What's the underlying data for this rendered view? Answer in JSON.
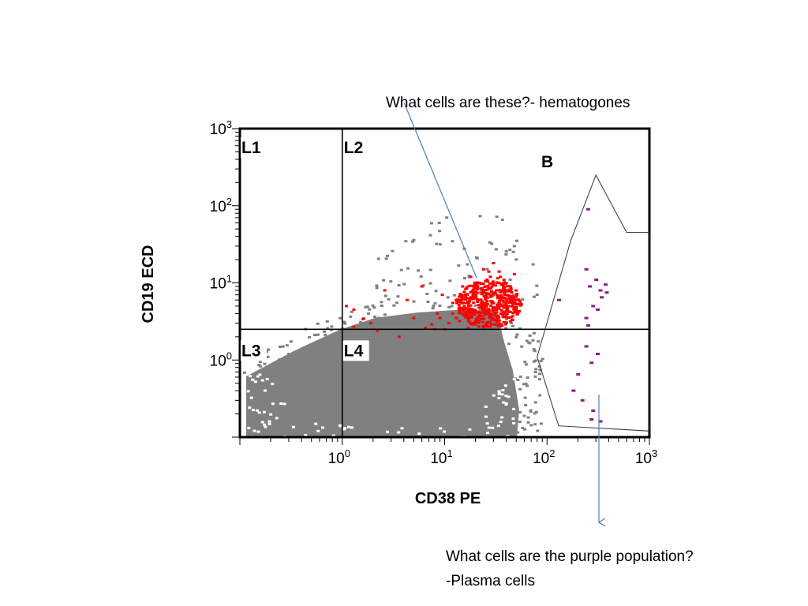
{
  "annotations": {
    "hematogones": "What cells are these?- hematogones",
    "purple_question": "What cells are the purple population?",
    "purple_answer": "-Plasma cells"
  },
  "chart_data": {
    "type": "scatter",
    "scale": "log",
    "xlabel": "CD38 PE",
    "ylabel": "CD19 ECD",
    "xlim": [
      0.1,
      1000
    ],
    "ylim": [
      0.1,
      1000
    ],
    "x_ticks": [
      {
        "value": 1,
        "base": "10",
        "exp": "0"
      },
      {
        "value": 10,
        "base": "10",
        "exp": "1"
      },
      {
        "value": 100,
        "base": "10",
        "exp": "2"
      },
      {
        "value": 1000,
        "base": "10",
        "exp": "3"
      }
    ],
    "y_ticks": [
      {
        "value": 1,
        "base": "10",
        "exp": "0"
      },
      {
        "value": 10,
        "base": "10",
        "exp": "1"
      },
      {
        "value": 100,
        "base": "10",
        "exp": "2"
      },
      {
        "value": 1000,
        "base": "10",
        "exp": "3"
      }
    ],
    "quadrant_lines": {
      "x": 1.0,
      "y": 2.5
    },
    "region_labels": [
      "L1",
      "L2",
      "L3",
      "L4",
      "B"
    ],
    "gate_B_polygon": [
      [
        300,
        250
      ],
      [
        600,
        45
      ],
      [
        1000,
        45
      ],
      [
        1000,
        0.12
      ],
      [
        130,
        0.14
      ],
      [
        80,
        1.1
      ],
      [
        170,
        35
      ]
    ],
    "colors": {
      "grey": "#808080",
      "red": "#ff0000",
      "purple": "#8b1a8b",
      "annotation_line": "#4a7ebb"
    },
    "series": [
      {
        "color": "red",
        "points": [
          [
            1.3,
            4.5
          ],
          [
            1.3,
            2.7
          ],
          [
            1.9,
            3.0
          ],
          [
            2.6,
            8.0
          ],
          [
            3.6,
            2.0
          ],
          [
            4.3,
            6.0
          ],
          [
            5.0,
            3.5
          ],
          [
            6.0,
            9.0
          ],
          [
            6.5,
            2.6
          ],
          [
            7.5,
            2.9
          ],
          [
            8.5,
            4.0
          ],
          [
            9.5,
            7.0
          ],
          [
            10,
            2.5
          ],
          [
            12,
            4.0
          ],
          [
            13,
            6.0
          ],
          [
            14,
            3.2
          ],
          [
            15,
            9.0
          ],
          [
            16,
            5.5
          ],
          [
            17,
            2.6
          ],
          [
            18,
            12
          ],
          [
            19,
            4.5
          ],
          [
            20,
            7.0
          ],
          [
            21,
            3.2
          ],
          [
            22,
            10
          ],
          [
            23,
            5.0
          ],
          [
            24,
            15
          ],
          [
            25,
            6.5
          ],
          [
            26,
            4.0
          ],
          [
            27,
            8.5
          ],
          [
            28,
            12
          ],
          [
            29,
            5.5
          ],
          [
            30,
            18
          ],
          [
            31,
            7.5
          ],
          [
            32,
            4.5
          ],
          [
            33,
            10
          ],
          [
            34,
            14
          ],
          [
            35,
            6.0
          ],
          [
            36,
            8.0
          ],
          [
            38,
            11
          ],
          [
            40,
            7.0
          ],
          [
            42,
            5.0
          ],
          [
            44,
            9.0
          ],
          [
            46,
            6.0
          ],
          [
            48,
            13
          ],
          [
            50,
            8.0
          ],
          [
            22,
            6.0
          ],
          [
            25,
            9.0
          ],
          [
            28,
            7.0
          ],
          [
            30,
            5.5
          ],
          [
            32,
            8.0
          ],
          [
            35,
            12
          ],
          [
            26,
            11
          ],
          [
            24,
            7.5
          ],
          [
            20,
            10
          ],
          [
            18,
            6.5
          ],
          [
            30,
            9.5
          ],
          [
            34,
            6.5
          ],
          [
            38,
            8.5
          ],
          [
            40,
            10
          ],
          [
            27,
            14
          ],
          [
            29,
            9.0
          ],
          [
            33,
            11.5
          ],
          [
            36,
            9.5
          ],
          [
            23,
            8.5
          ],
          [
            21,
            6.0
          ],
          [
            19,
            8.0
          ],
          [
            17,
            5.5
          ],
          [
            16,
            7.0
          ],
          [
            15,
            4.5
          ],
          [
            14,
            6.0
          ],
          [
            13,
            3.5
          ],
          [
            12,
            5.5
          ],
          [
            11,
            3.0
          ],
          [
            9,
            3.5
          ],
          [
            8,
            2.5
          ],
          [
            1.6,
            3.4
          ],
          [
            1.1,
            5.0
          ],
          [
            2.2,
            2.4
          ]
        ]
      },
      {
        "color": "purple",
        "points": [
          [
            250,
            90
          ],
          [
            240,
            15
          ],
          [
            300,
            11
          ],
          [
            380,
            7.5
          ],
          [
            330,
            8.0
          ],
          [
            370,
            9.5
          ],
          [
            340,
            6.5
          ],
          [
            260,
            9.0
          ],
          [
            130,
            6.0
          ],
          [
            280,
            5.0
          ],
          [
            310,
            4.5
          ],
          [
            240,
            3.5
          ],
          [
            250,
            2.8
          ],
          [
            240,
            1.5
          ],
          [
            310,
            1.2
          ],
          [
            270,
            0.92
          ],
          [
            200,
            0.65
          ],
          [
            180,
            0.4
          ],
          [
            220,
            0.3
          ],
          [
            280,
            0.22
          ],
          [
            270,
            0.17
          ],
          [
            330,
            0.16
          ]
        ]
      }
    ]
  }
}
